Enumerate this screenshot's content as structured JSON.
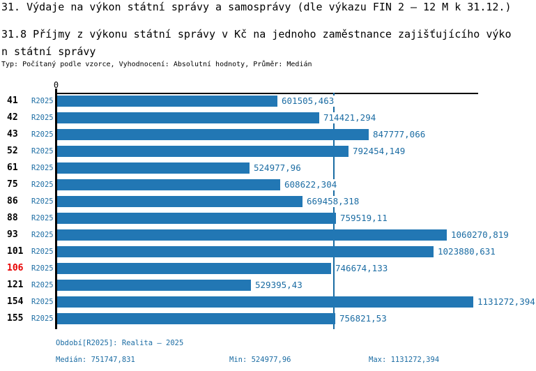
{
  "header": {
    "title": "31. Výdaje na výkon státní správy a samosprávy (dle výkazu FIN 2 – 12 M k 31.12.)",
    "subtitle": "31.8 Příjmy z výkonu státní správy v Kč na jednoho zaměstnance zajišťujícího výkon státní správy",
    "meta": "Typ: Počítaný podle vzorce, Vyhodnocení: Absolutní hodnoty, Průměr: Medián"
  },
  "chart_data": {
    "type": "bar",
    "orientation": "horizontal",
    "title": "31.8 Příjmy z výkonu státní správy v Kč na jednoho zaměstnance zajišťujícího výkon státní správy",
    "axis_origin_label": "0",
    "series_period": "R2025",
    "categories": [
      "41",
      "42",
      "43",
      "52",
      "61",
      "75",
      "86",
      "88",
      "93",
      "101",
      "106",
      "121",
      "154",
      "155"
    ],
    "values": [
      601505.463,
      714421.294,
      847777.066,
      792454.149,
      524977.96,
      608622.304,
      669458.318,
      759519.11,
      1060270.819,
      1023880.631,
      746674.133,
      529395.43,
      1131272.394,
      756821.53
    ],
    "value_labels": [
      "601505,463",
      "714421,294",
      "847777,066",
      "792454,149",
      "524977,96",
      "608622,304",
      "669458,318",
      "759519,11",
      "1060270,819",
      "1023880,631",
      "746674,133",
      "529395,43",
      "1131272,394",
      "756821,53"
    ],
    "highlighted_category": "106",
    "median": 751747.831,
    "min": 524977.96,
    "max": 1131272.394,
    "xlim": [
      0,
      1145000
    ],
    "grid": false,
    "legend": "none",
    "median_line": true
  },
  "footer": {
    "period_info": "Období[R2025]: Realita – 2025",
    "median_label": "Medián: 751747,831",
    "min_label": "Min: 524977,96",
    "max_label": "Max: 1131272,394"
  },
  "colors": {
    "bar": "#2277B4",
    "accent_text": "#1B6CA3",
    "highlight_red": "#E80000",
    "axis": "#000000"
  }
}
